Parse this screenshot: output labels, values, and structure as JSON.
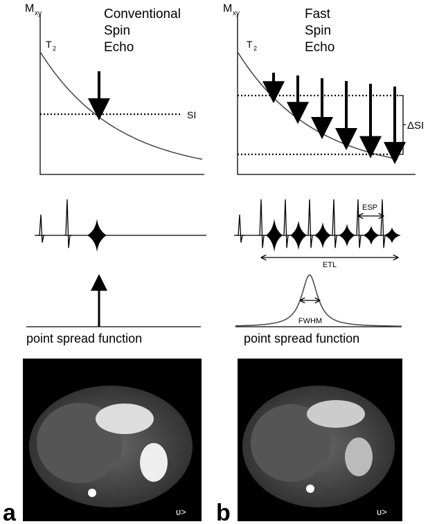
{
  "panels": [
    {
      "axis_label": "M",
      "axis_label_sub": "xy",
      "curve_label": "T",
      "curve_label_sub": "2",
      "title": [
        "Conventional",
        "Spin",
        "Echo"
      ],
      "level_label": "SI",
      "psf_label": "point spread function",
      "image_marker": "υ>",
      "panel_letter": "a"
    },
    {
      "axis_label": "M",
      "axis_label_sub": "xy",
      "curve_label": "T",
      "curve_label_sub": "2",
      "title": [
        "Fast",
        "Spin",
        "Echo"
      ],
      "delta_label": "ΔSI",
      "esp_label": "ESP",
      "etl_label": "ETL",
      "fwhm_label": "FWHM",
      "psf_label": "point spread function",
      "image_marker": "υ>",
      "panel_letter": "b"
    }
  ]
}
